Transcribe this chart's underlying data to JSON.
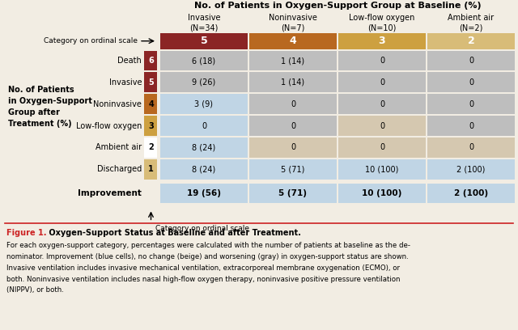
{
  "title": "No. of Patients in Oxygen-Support Group at Baseline (%)",
  "col_headers": [
    "Invasive\n(N=34)",
    "Noninvasive\n(N=7)",
    "Low-flow oxygen\n(N=10)",
    "Ambient air\n(N=2)"
  ],
  "baseline_row_label": "Category on ordinal scale",
  "baseline_values": [
    "5",
    "4",
    "3",
    "2"
  ],
  "row_labels": [
    "Death",
    "Invasive",
    "Noninvasive",
    "Low-flow oxygen",
    "Ambient air",
    "Discharged"
  ],
  "row_scale_nums": [
    "6",
    "5",
    "4",
    "3",
    "2",
    "1"
  ],
  "table_data": [
    [
      "6 (18)",
      "1 (14)",
      "0",
      "0"
    ],
    [
      "9 (26)",
      "1 (14)",
      "0",
      "0"
    ],
    [
      "3 (9)",
      "0",
      "0",
      "0"
    ],
    [
      "0",
      "0",
      "0",
      "0"
    ],
    [
      "8 (24)",
      "0",
      "0",
      "0"
    ],
    [
      "8 (24)",
      "5 (71)",
      "10 (100)",
      "2 (100)"
    ]
  ],
  "improvement_row_label": "Improvement",
  "improvement_data": [
    "19 (56)",
    "5 (71)",
    "10 (100)",
    "2 (100)"
  ],
  "ylabel": "No. of Patients\nin Oxygen-Support\nGroup after\nTreatment (%)",
  "baseline_bg_colors": [
    "#8B2525",
    "#B86820",
    "#CDA040",
    "#D8BC78"
  ],
  "row_scale_bg_colors": [
    "#8B2525",
    "#8B2525",
    "#B86820",
    "#CDA040",
    "#FFFFFF",
    "#D8BC78"
  ],
  "cell_colors_grid": [
    [
      "#BEBEBE",
      "#BEBEBE",
      "#BEBEBE",
      "#BEBEBE"
    ],
    [
      "#BEBEBE",
      "#BEBEBE",
      "#BEBEBE",
      "#BEBEBE"
    ],
    [
      "#C0D5E5",
      "#BEBEBE",
      "#BEBEBE",
      "#BEBEBE"
    ],
    [
      "#C0D5E5",
      "#BEBEBE",
      "#D5C8B0",
      "#BEBEBE"
    ],
    [
      "#C0D5E5",
      "#D5C8B0",
      "#D5C8B0",
      "#D5C8B0"
    ],
    [
      "#C0D5E5",
      "#C0D5E5",
      "#C0D5E5",
      "#C0D5E5"
    ]
  ],
  "improvement_colors": [
    "#C0D5E5",
    "#C0D5E5",
    "#C0D5E5",
    "#C0D5E5"
  ],
  "figure_label": "Figure 1.",
  "figure_title": " Oxygen-Support Status at Baseline and after Treatment.",
  "caption_lines": [
    "For each oxygen-support category, percentages were calculated with the number of patients at baseline as the de-",
    "nominator. Improvement (blue cells), no change (beige) and worsening (gray) in oxygen-support status are shown.",
    "Invasive ventilation includes invasive mechanical ventilation, extracorporeal membrane oxygenation (ECMO), or",
    "both. Noninvasive ventilation includes nasal high-flow oxygen therapy, noninvasive positive pressure ventilation",
    "(NIPPV), or both."
  ],
  "bg_color": "#F2EDE3",
  "white_bg": "#FFFFFF",
  "fig_width": 6.4,
  "fig_height": 4.08,
  "dpi": 100
}
